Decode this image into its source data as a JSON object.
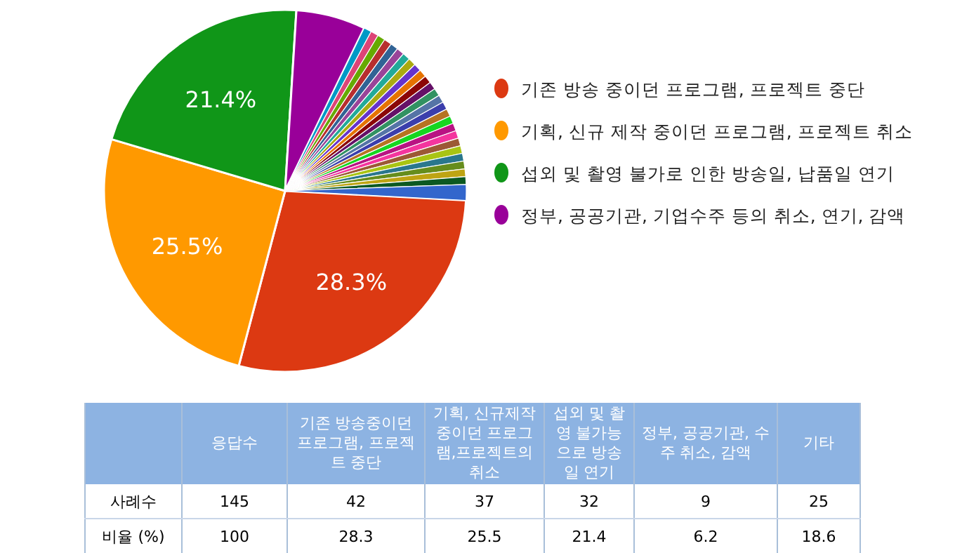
{
  "chart_data": [
    {
      "type": "pie",
      "categories": [
        "기존 방송 중이던 프로그램, 프로젝트 중단",
        "기획, 신규 제작 중이던 프로그램, 프로젝트 취소",
        "섭외 및 촬영 불가로 인한 방송일, 납품일 연기",
        "정부, 공공기관, 기업수주 등의 취소, 연기, 감액",
        null,
        null,
        null,
        null,
        null,
        null,
        null,
        null,
        null,
        null,
        null,
        null,
        null,
        null,
        null,
        null,
        null,
        null,
        null,
        null,
        null,
        null,
        null,
        null,
        null,
        null
      ],
      "values": [
        28.3,
        25.5,
        21.4,
        6.2,
        0.69,
        0.69,
        0.69,
        0.69,
        0.69,
        0.69,
        0.69,
        0.69,
        0.69,
        0.69,
        0.69,
        0.69,
        0.69,
        0.69,
        0.69,
        0.69,
        0.69,
        0.69,
        0.69,
        0.69,
        0.69,
        0.69,
        0.69,
        0.69,
        0.69,
        1.4
      ],
      "colors": [
        "#dc3912",
        "#ff9900",
        "#109618",
        "#990099",
        "#0099c6",
        "#dd4477",
        "#66aa00",
        "#b82e2e",
        "#316395",
        "#994499",
        "#22aa99",
        "#aaaa11",
        "#6633cc",
        "#e67300",
        "#8b0707",
        "#651067",
        "#329262",
        "#5574a6",
        "#3b3eac",
        "#b77322",
        "#16d620",
        "#b91383",
        "#f4359e",
        "#9c5935",
        "#a9c413",
        "#2a778d",
        "#668d1c",
        "#bea413",
        "#0c5922",
        "#3366cc"
      ],
      "value_labels": [
        "28.3%",
        "25.5%",
        "21.4%",
        null,
        null,
        null,
        null,
        null,
        null,
        null,
        null,
        null,
        null,
        null,
        null,
        null,
        null,
        null,
        null,
        null,
        null,
        null,
        null,
        null,
        null,
        null,
        null,
        null,
        null,
        null
      ],
      "legend": "right"
    },
    {
      "type": "other",
      "categories": [
        "응답수",
        "기존 방송중이던 프로그램, 프로젝트 중단",
        "기획, 신규제작 중이던 프로그램,프로젝트의 취소",
        "섭외 및 촬영 불가능으로 방송일 연기",
        "정부, 공공기관, 수주 취소, 감액",
        "기타"
      ],
      "series": [
        {
          "name": "사례수",
          "values": [
            145,
            42,
            37,
            32,
            9,
            25
          ]
        },
        {
          "name": "비율 (%)",
          "values": [
            100,
            28.3,
            25.5,
            21.4,
            6.2,
            18.6
          ]
        }
      ],
      "data_labels": true
    }
  ]
}
